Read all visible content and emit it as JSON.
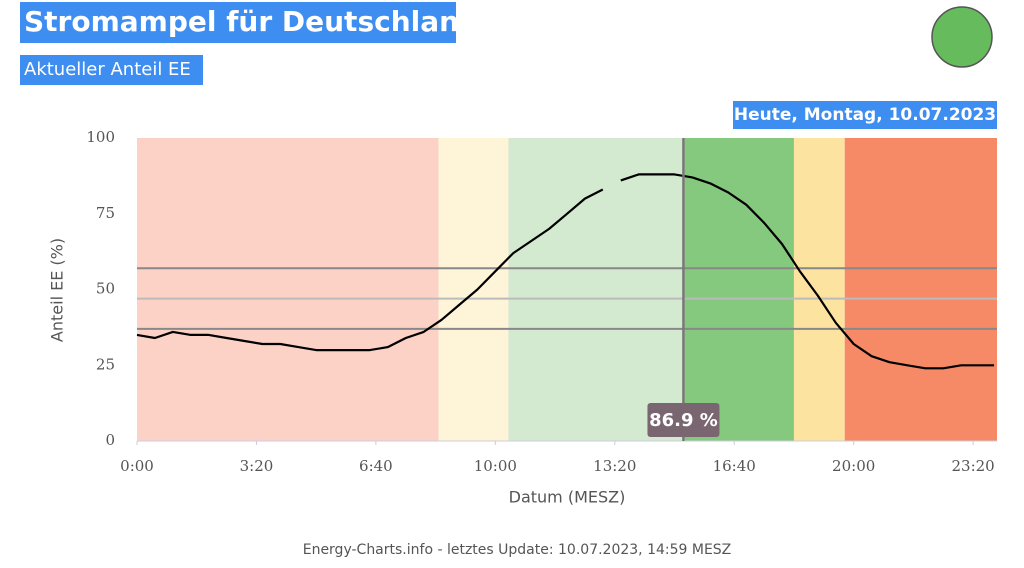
{
  "chart_data": {
    "type": "line",
    "title": "Stromampel für Deutschland",
    "subtitle": "Aktueller Anteil EE",
    "date_label": "Heute, Montag, 10.07.2023",
    "status_color": "#66bb5c",
    "ylabel": "Anteil EE (%)",
    "xlabel": "Datum (MESZ)",
    "footer": "Energy-Charts.info - letztes Update: 10.07.2023, 14:59 MESZ",
    "xlim": [
      0,
      1440
    ],
    "ylim": [
      0,
      100
    ],
    "xticks": [
      {
        "value": 0,
        "label": "0:00"
      },
      {
        "value": 200,
        "label": "3:20"
      },
      {
        "value": 400,
        "label": "6:40"
      },
      {
        "value": 600,
        "label": "10:00"
      },
      {
        "value": 800,
        "label": "13:20"
      },
      {
        "value": 1000,
        "label": "16:40"
      },
      {
        "value": 1200,
        "label": "20:00"
      },
      {
        "value": 1400,
        "label": "23:20"
      }
    ],
    "yticks": [
      0,
      25,
      50,
      75,
      100
    ],
    "bands": [
      {
        "start": 0,
        "end": 505,
        "color": "#fcd2c7"
      },
      {
        "start": 505,
        "end": 622,
        "color": "#fef4d7"
      },
      {
        "start": 622,
        "end": 917,
        "color": "#d3ead0"
      },
      {
        "start": 917,
        "end": 1100,
        "color": "#85c97e"
      },
      {
        "start": 1100,
        "end": 1185,
        "color": "#fde3a0"
      },
      {
        "start": 1185,
        "end": 1440,
        "color": "#f68a66"
      }
    ],
    "reference_lines": [
      {
        "value": 57,
        "color": "#888"
      },
      {
        "value": 47,
        "color": "#bbb"
      },
      {
        "value": 37,
        "color": "#888"
      }
    ],
    "marker": {
      "x": 915,
      "value": 86.9,
      "label": "86.9 %"
    },
    "x": [
      0,
      30,
      60,
      90,
      120,
      150,
      180,
      210,
      240,
      270,
      300,
      330,
      360,
      390,
      420,
      450,
      480,
      510,
      540,
      570,
      600,
      630,
      660,
      690,
      720,
      750,
      780,
      795,
      810,
      840,
      870,
      900,
      930,
      960,
      990,
      1020,
      1050,
      1080,
      1110,
      1140,
      1170,
      1200,
      1230,
      1260,
      1290,
      1320,
      1350,
      1380,
      1410,
      1435
    ],
    "series": [
      {
        "name": "Anteil EE",
        "color": "#000000",
        "values": [
          35,
          34,
          36,
          35,
          35,
          34,
          33,
          32,
          32,
          31,
          30,
          30,
          30,
          30,
          31,
          34,
          36,
          40,
          45,
          50,
          56,
          62,
          66,
          70,
          75,
          80,
          83,
          null,
          86,
          88,
          88,
          88,
          87,
          85,
          82,
          78,
          72,
          65,
          56,
          48,
          39,
          32,
          28,
          26,
          25,
          24,
          24,
          25,
          25,
          25
        ]
      }
    ]
  }
}
